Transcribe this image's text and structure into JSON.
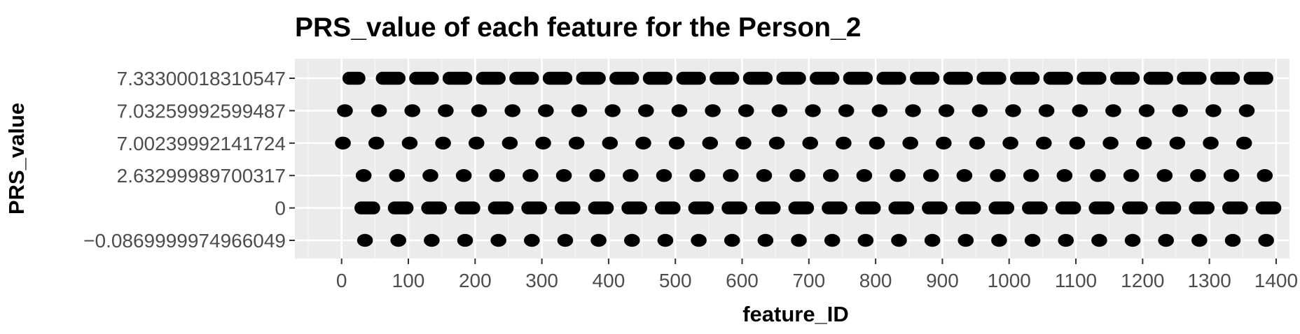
{
  "chart_data": {
    "type": "scatter",
    "title": "PRS_value of each feature for the Person_2",
    "xlabel": "feature_ID",
    "ylabel": "PRS_value",
    "xlim": [
      -70,
      1420
    ],
    "grid": true,
    "legend": "none",
    "x_ticks": [
      0,
      100,
      200,
      300,
      400,
      500,
      600,
      700,
      800,
      900,
      1000,
      1100,
      1200,
      1300,
      1400
    ],
    "y_categories": [
      "7.33300018310547",
      "7.03259992599487",
      "7.00239992141724",
      "2.63299989700317",
      "0",
      "-0.0869999974966049"
    ],
    "y_tick_labels": [
      "7.33300018310547",
      "7.03259992599487",
      "7.00239992141724",
      "2.63299989700317",
      "0",
      "−0.0869999974966049"
    ],
    "series": [
      {
        "y": "7.33300018310547",
        "x_ranges": [
          [
            13,
            24
          ],
          [
            63,
            84
          ],
          [
            113,
            134
          ],
          [
            163,
            184
          ],
          [
            213,
            234
          ],
          [
            263,
            284
          ],
          [
            313,
            334
          ],
          [
            363,
            384
          ],
          [
            413,
            434
          ],
          [
            463,
            484
          ],
          [
            513,
            534
          ],
          [
            563,
            584
          ],
          [
            613,
            634
          ],
          [
            663,
            684
          ],
          [
            713,
            734
          ],
          [
            763,
            784
          ],
          [
            813,
            834
          ],
          [
            863,
            884
          ],
          [
            913,
            934
          ],
          [
            963,
            984
          ],
          [
            1013,
            1034
          ],
          [
            1063,
            1084
          ],
          [
            1113,
            1134
          ],
          [
            1163,
            1184
          ],
          [
            1213,
            1234
          ],
          [
            1263,
            1284
          ],
          [
            1313,
            1334
          ],
          [
            1363,
            1384
          ]
        ]
      },
      {
        "y": "7.03259992599487",
        "x": [
          5,
          56,
          106,
          156,
          206,
          256,
          306,
          356,
          406,
          456,
          506,
          556,
          606,
          656,
          706,
          756,
          806,
          856,
          906,
          956,
          1006,
          1056,
          1106,
          1156,
          1206,
          1256,
          1306,
          1356
        ]
      },
      {
        "y": "7.00239992141724",
        "x": [
          2,
          52,
          102,
          152,
          202,
          252,
          302,
          352,
          402,
          452,
          502,
          552,
          602,
          652,
          702,
          752,
          802,
          852,
          902,
          952,
          1002,
          1052,
          1102,
          1152,
          1202,
          1252,
          1302,
          1352
        ]
      },
      {
        "y": "2.63299989700317",
        "x": [
          33,
          83,
          133,
          183,
          233,
          283,
          333,
          383,
          433,
          483,
          533,
          583,
          633,
          683,
          733,
          783,
          833,
          883,
          933,
          983,
          1033,
          1083,
          1133,
          1183,
          1233,
          1283,
          1333,
          1383
        ]
      },
      {
        "y": "0",
        "x_ranges": [
          [
            31,
            46
          ],
          [
            81,
            96
          ],
          [
            131,
            146
          ],
          [
            181,
            196
          ],
          [
            231,
            246
          ],
          [
            281,
            296
          ],
          [
            331,
            346
          ],
          [
            381,
            396
          ],
          [
            431,
            446
          ],
          [
            481,
            496
          ],
          [
            531,
            546
          ],
          [
            581,
            596
          ],
          [
            631,
            646
          ],
          [
            681,
            696
          ],
          [
            731,
            746
          ],
          [
            781,
            796
          ],
          [
            831,
            846
          ],
          [
            881,
            896
          ],
          [
            931,
            946
          ],
          [
            981,
            996
          ],
          [
            1031,
            1046
          ],
          [
            1081,
            1096
          ],
          [
            1131,
            1146
          ],
          [
            1181,
            1196
          ],
          [
            1231,
            1246
          ],
          [
            1281,
            1296
          ],
          [
            1331,
            1346
          ],
          [
            1381,
            1396
          ]
        ]
      },
      {
        "y": "-0.0869999974966049",
        "x": [
          35,
          85,
          135,
          185,
          235,
          285,
          335,
          385,
          435,
          485,
          535,
          585,
          635,
          685,
          735,
          785,
          835,
          885,
          935,
          985,
          1035,
          1085,
          1135,
          1185,
          1235,
          1285,
          1335,
          1385
        ]
      }
    ]
  }
}
